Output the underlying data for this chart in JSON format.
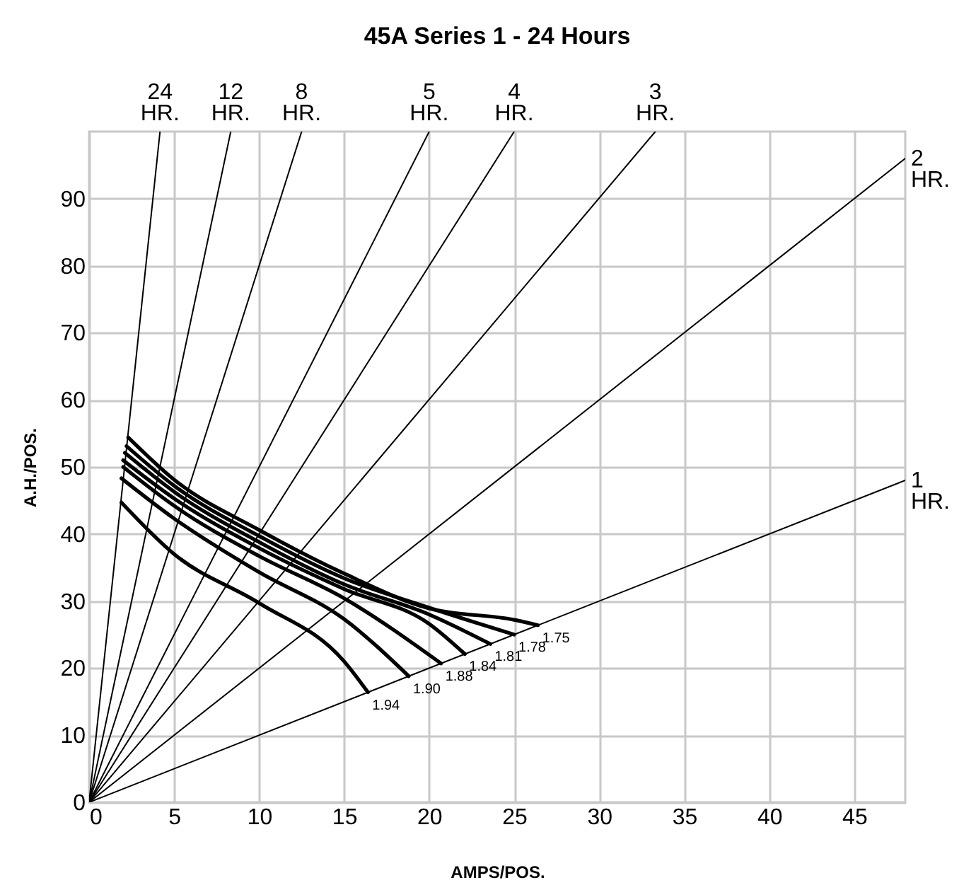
{
  "chart_data": {
    "type": "line",
    "title": "45A Series    1 - 24 Hours",
    "xlabel": "AMPS/POS.",
    "ylabel": "A.H./POS.",
    "xlim": [
      0,
      48
    ],
    "ylim": [
      0,
      100
    ],
    "xticks": [
      0,
      5,
      10,
      15,
      20,
      25,
      30,
      35,
      40,
      45
    ],
    "yticks": [
      0,
      10,
      20,
      30,
      40,
      50,
      60,
      70,
      80,
      90
    ],
    "grid": true,
    "series": [
      {
        "name": "24 HR.",
        "color": "#000000",
        "x": [
          0,
          4.17
        ],
        "values": [
          0,
          100
        ]
      },
      {
        "name": "12 HR.",
        "color": "#000000",
        "x": [
          0,
          8.33
        ],
        "values": [
          0,
          100
        ]
      },
      {
        "name": "8 HR.",
        "color": "#000000",
        "x": [
          0,
          12.5
        ],
        "values": [
          0,
          100
        ]
      },
      {
        "name": "5 HR.",
        "color": "#000000",
        "x": [
          0,
          20
        ],
        "values": [
          0,
          100
        ]
      },
      {
        "name": "4 HR.",
        "color": "#000000",
        "x": [
          0,
          25
        ],
        "values": [
          0,
          100
        ]
      },
      {
        "name": "3 HR.",
        "color": "#000000",
        "x": [
          0,
          33.3
        ],
        "values": [
          0,
          100
        ]
      },
      {
        "name": "2 HR.",
        "color": "#000000",
        "x": [
          0,
          48
        ],
        "values": [
          0,
          96
        ]
      },
      {
        "name": "1 HR.",
        "color": "#000000",
        "x": [
          0,
          48
        ],
        "values": [
          0,
          48
        ]
      },
      {
        "name": "1.94",
        "color": "#000000",
        "x": [
          1.9,
          5,
          10,
          15,
          16.4
        ],
        "values": [
          44.7,
          37,
          29.7,
          21,
          16.4
        ]
      },
      {
        "name": "1.90",
        "color": "#000000",
        "x": [
          1.9,
          5,
          10,
          15,
          18.8
        ],
        "values": [
          48.3,
          42.3,
          34.3,
          27.3,
          18.8
        ]
      },
      {
        "name": "1.88",
        "color": "#000000",
        "x": [
          2,
          5,
          10,
          15,
          20.7
        ],
        "values": [
          50,
          44.2,
          36.7,
          30.4,
          20.7
        ]
      },
      {
        "name": "1.84",
        "color": "#000000",
        "x": [
          2,
          5,
          10,
          15,
          20,
          22.1
        ],
        "values": [
          51,
          45.3,
          37.9,
          31.8,
          26.6,
          22.1
        ]
      },
      {
        "name": "1.81",
        "color": "#000000",
        "x": [
          2.1,
          5,
          10,
          15,
          20,
          23.6
        ],
        "values": [
          52.1,
          46.3,
          38.8,
          32.5,
          28,
          23.6
        ]
      },
      {
        "name": "1.78",
        "color": "#000000",
        "x": [
          2.2,
          5,
          10,
          15,
          20,
          25
        ],
        "values": [
          53.1,
          47.2,
          39.7,
          33.4,
          29,
          25
        ]
      },
      {
        "name": "1.75",
        "color": "#000000",
        "x": [
          2.3,
          5,
          10,
          15,
          20,
          25,
          26.4
        ],
        "values": [
          54.4,
          48.1,
          40.6,
          34.1,
          28.9,
          27.2,
          26.4
        ]
      }
    ]
  }
}
